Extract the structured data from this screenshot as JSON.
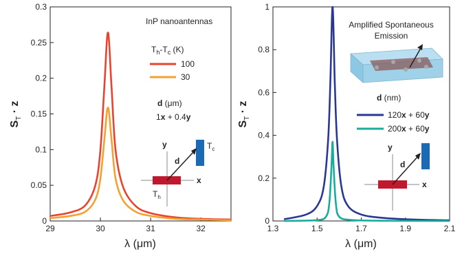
{
  "chart_data": [
    {
      "type": "line",
      "xlabel": "λ (μm)",
      "ylabel": "S_T · z",
      "xlim": [
        29,
        32.6
      ],
      "ylim": [
        0,
        0.3
      ],
      "x_ticks": [
        "29",
        "30",
        "31",
        "32"
      ],
      "y_ticks": [
        "0",
        "0.05",
        "0.1",
        "0.15",
        "0.2",
        "0.25",
        "0.3"
      ],
      "series": [
        {
          "name": "100",
          "color": "#e8432e",
          "x": [
            29.0,
            29.4,
            29.7,
            29.9,
            30.0,
            30.08,
            30.15,
            30.22,
            30.3,
            30.45,
            30.7,
            31.0,
            31.5,
            32.0,
            32.6
          ],
          "y": [
            0.007,
            0.012,
            0.022,
            0.05,
            0.1,
            0.19,
            0.264,
            0.19,
            0.1,
            0.048,
            0.021,
            0.011,
            0.005,
            0.003,
            0.002
          ]
        },
        {
          "name": "30",
          "color": "#f5a02f",
          "x": [
            29.0,
            29.4,
            29.7,
            29.9,
            30.0,
            30.08,
            30.15,
            30.22,
            30.3,
            30.45,
            30.7,
            31.0,
            31.5,
            32.0,
            32.6
          ],
          "y": [
            0.004,
            0.007,
            0.013,
            0.03,
            0.06,
            0.115,
            0.159,
            0.115,
            0.06,
            0.029,
            0.013,
            0.007,
            0.003,
            0.002,
            0.001
          ]
        }
      ],
      "annotations": {
        "title": "InP nanoantennas",
        "legend_title": "T",
        "legend_title_sub1": "h",
        "legend_title_mid": "-T",
        "legend_title_sub2": "c",
        "legend_title_unit": " (K)",
        "d_label": "d",
        "d_unit": " (μm)",
        "d_expr_a": "1",
        "d_expr_b": "x",
        "d_expr_c": " + 0.4",
        "d_expr_d": "y",
        "inset_y": "y",
        "inset_x": "x",
        "inset_d": "d",
        "inset_tc": "T",
        "inset_tc_sub": "c",
        "inset_th": "T",
        "inset_th_sub": "h"
      }
    },
    {
      "type": "line",
      "xlabel": "λ (μm)",
      "ylabel": "S_T · z",
      "xlim": [
        1.3,
        2.1
      ],
      "ylim": [
        0,
        1
      ],
      "x_ticks": [
        "1.3",
        "1.5",
        "1.7",
        "1.9",
        "2.1"
      ],
      "y_ticks": [
        "0",
        "0.2",
        "0.4",
        "0.6",
        "0.8",
        "1"
      ],
      "series": [
        {
          "name": "120x + 60y",
          "color": "#283791",
          "x": [
            1.35,
            1.45,
            1.5,
            1.53,
            1.55,
            1.56,
            1.57,
            1.58,
            1.59,
            1.61,
            1.64,
            1.7,
            1.8,
            1.95,
            2.1
          ],
          "y": [
            0.008,
            0.03,
            0.07,
            0.16,
            0.38,
            0.65,
            1.0,
            0.65,
            0.38,
            0.16,
            0.07,
            0.03,
            0.014,
            0.006,
            0.003
          ]
        },
        {
          "name": "200x + 60y",
          "color": "#1aab9b",
          "x": [
            1.35,
            1.5,
            1.54,
            1.555,
            1.565,
            1.57,
            1.575,
            1.585,
            1.6,
            1.65,
            1.8,
            2.1
          ],
          "y": [
            0.0,
            0.004,
            0.02,
            0.08,
            0.25,
            0.37,
            0.25,
            0.08,
            0.02,
            0.005,
            0.001,
            0.0
          ]
        }
      ],
      "annotations": {
        "title_line1": "Amplified Spontaneous",
        "title_line2": "Emission",
        "d_label": "d",
        "d_unit": " (nm)",
        "legend1_a": "120",
        "legend1_b": "x",
        "legend1_c": " + 60",
        "legend1_d": "y",
        "legend2_a": "200",
        "legend2_b": "x",
        "legend2_c": " + 60",
        "legend2_d": "y",
        "inset_y": "y",
        "inset_x": "x",
        "inset_d": "d"
      }
    }
  ]
}
